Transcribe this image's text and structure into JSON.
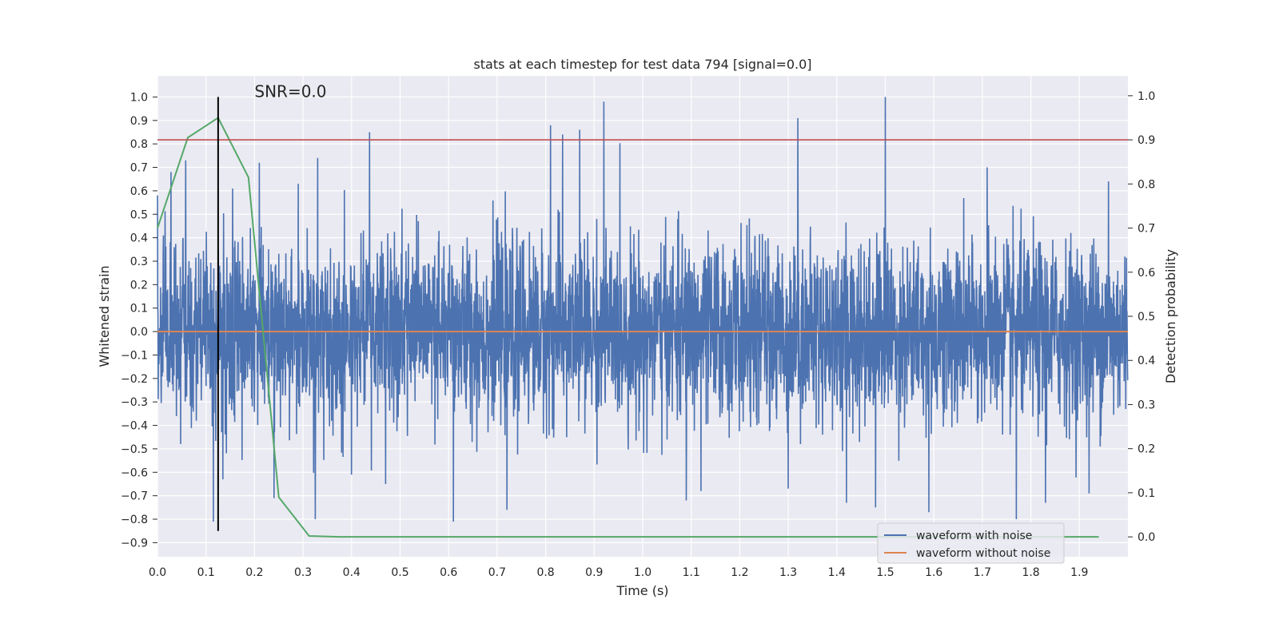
{
  "chart_data": {
    "type": "line",
    "title": "stats at each timestep for test data 794 [signal=0.0]",
    "xlabel": "Time (s)",
    "ylabel": "Whitened strain",
    "y2label": "Detection probability",
    "xlim": [
      0.0,
      2.0
    ],
    "ylim": [
      -0.96,
      1.09
    ],
    "y2lim": [
      -0.045,
      1.045
    ],
    "x_ticks": [
      "0.0",
      "0.1",
      "0.2",
      "0.3",
      "0.4",
      "0.5",
      "0.6",
      "0.7",
      "0.8",
      "0.9",
      "1.0",
      "1.1",
      "1.2",
      "1.3",
      "1.4",
      "1.5",
      "1.6",
      "1.7",
      "1.8",
      "1.9"
    ],
    "y_ticks": [
      "-0.9",
      "-0.8",
      "-0.7",
      "-0.6",
      "-0.5",
      "-0.4",
      "-0.3",
      "-0.2",
      "-0.1",
      "0.0",
      "0.1",
      "0.2",
      "0.3",
      "0.4",
      "0.5",
      "0.6",
      "0.7",
      "0.8",
      "0.9",
      "1.0"
    ],
    "y2_ticks": [
      "0.0",
      "0.1",
      "0.2",
      "0.3",
      "0.4",
      "0.5",
      "0.6",
      "0.7",
      "0.8",
      "0.9",
      "1.0"
    ],
    "grid": true,
    "legend_position": "lower-right",
    "annotation": {
      "text": "SNR=0.0",
      "x": 0.2,
      "y": 1.0
    },
    "series": [
      {
        "name": "waveform with noise",
        "axis": "left",
        "color": "#4c72b0",
        "noise_spikes": [
          {
            "x": 0.012,
            "y": 0.41
          },
          {
            "x": 0.028,
            "y": 0.68
          },
          {
            "x": 0.048,
            "y": -0.48
          },
          {
            "x": 0.058,
            "y": 0.73
          },
          {
            "x": 0.08,
            "y": -0.38
          },
          {
            "x": 0.115,
            "y": -0.81
          },
          {
            "x": 0.135,
            "y": -0.63
          },
          {
            "x": 0.155,
            "y": 0.61
          },
          {
            "x": 0.21,
            "y": 0.72
          },
          {
            "x": 0.24,
            "y": -0.71
          },
          {
            "x": 0.29,
            "y": 0.63
          },
          {
            "x": 0.33,
            "y": 0.74
          },
          {
            "x": 0.325,
            "y": -0.8
          },
          {
            "x": 0.4,
            "y": -0.61
          },
          {
            "x": 0.437,
            "y": 0.85
          },
          {
            "x": 0.47,
            "y": -0.65
          },
          {
            "x": 0.61,
            "y": -0.81
          },
          {
            "x": 0.72,
            "y": -0.76
          },
          {
            "x": 0.81,
            "y": 0.88
          },
          {
            "x": 0.835,
            "y": 0.84
          },
          {
            "x": 0.87,
            "y": 0.86
          },
          {
            "x": 0.92,
            "y": 0.98
          },
          {
            "x": 1.09,
            "y": -0.72
          },
          {
            "x": 1.12,
            "y": -0.68
          },
          {
            "x": 1.32,
            "y": 0.91
          },
          {
            "x": 1.3,
            "y": -0.67
          },
          {
            "x": 1.42,
            "y": -0.73
          },
          {
            "x": 1.5,
            "y": 1.0
          },
          {
            "x": 1.48,
            "y": -0.75
          },
          {
            "x": 1.59,
            "y": -0.77
          },
          {
            "x": 1.71,
            "y": 0.7
          },
          {
            "x": 1.77,
            "y": -0.8
          },
          {
            "x": 1.83,
            "y": -0.73
          },
          {
            "x": 1.92,
            "y": -0.69
          },
          {
            "x": 1.96,
            "y": 0.64
          }
        ],
        "typical_amplitude": 0.25
      },
      {
        "name": "waveform without noise",
        "axis": "left",
        "color": "#dd8452",
        "x": [
          0.0,
          2.0
        ],
        "values": [
          0.0,
          0.0
        ]
      },
      {
        "axis": "right",
        "color": "#55a868",
        "x": [
          0.0,
          0.0625,
          0.125,
          0.1875,
          0.25,
          0.3125,
          0.375,
          0.5,
          1.0,
          1.5,
          1.94
        ],
        "values": [
          0.7,
          0.905,
          0.95,
          0.815,
          0.09,
          0.002,
          0.0,
          0.0,
          0.0,
          0.0,
          0.0
        ]
      }
    ],
    "threshold_line": {
      "axis": "right",
      "value": 0.9,
      "color": "#c44e52"
    },
    "marker_line": {
      "x": 0.125,
      "y_from": -0.85,
      "y_to": 1.0,
      "color": "#000000"
    }
  }
}
